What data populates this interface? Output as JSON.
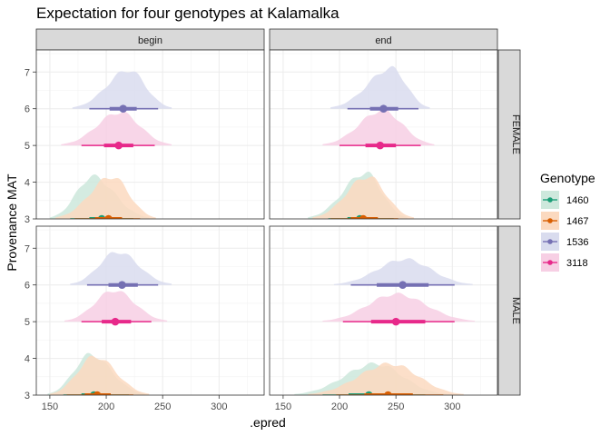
{
  "chart_data": {
    "type": "halfeye",
    "title": "Expectation for four genotypes at Kalamalka",
    "xlabel": ".epred",
    "ylabel": "Provenance MAT",
    "xlim": [
      138,
      340
    ],
    "ylim": [
      3,
      7.6
    ],
    "x_ticks": [
      150,
      200,
      250,
      300
    ],
    "y_ticks": [
      3,
      4,
      5,
      6,
      7
    ],
    "grid": true,
    "columns": [
      "begin",
      "end"
    ],
    "rows": [
      "FEMALE",
      "MALE"
    ],
    "legend": {
      "title": "Genotype",
      "placement": "right",
      "entries": [
        {
          "label": "1460",
          "color": "#1b9e77",
          "fill": "#cde8dc"
        },
        {
          "label": "1467",
          "color": "#d95f02",
          "fill": "#fbd9bf"
        },
        {
          "label": "1536",
          "color": "#7570b3",
          "fill": "#d9dcee"
        },
        {
          "label": "3118",
          "color": "#e7298a",
          "fill": "#f7cfe4"
        }
      ]
    },
    "panels": [
      {
        "row": "FEMALE",
        "col": "begin",
        "series": [
          {
            "genotype": "1460",
            "y": 3.0,
            "point": 196,
            "q66": [
              185,
              205
            ],
            "q95": [
              168,
              224
            ],
            "range": [
              150,
              238
            ],
            "mode": 188,
            "height": 1.15
          },
          {
            "genotype": "1467",
            "y": 3.0,
            "point": 202,
            "q66": [
              190,
              214
            ],
            "q95": [
              172,
              230
            ],
            "range": [
              155,
              244
            ],
            "mode": 205,
            "height": 1.15
          },
          {
            "genotype": "3118",
            "y": 5.0,
            "point": 211,
            "q66": [
              198,
              224
            ],
            "q95": [
              178,
              243
            ],
            "range": [
              160,
              258
            ],
            "mode": 212,
            "height": 0.9
          },
          {
            "genotype": "1536",
            "y": 6.0,
            "point": 215,
            "q66": [
              203,
              227
            ],
            "q95": [
              185,
              246
            ],
            "range": [
              170,
              258
            ],
            "mode": 220,
            "height": 1.05
          }
        ]
      },
      {
        "row": "FEMALE",
        "col": "end",
        "series": [
          {
            "genotype": "1460",
            "y": 3.0,
            "point": 218,
            "q66": [
              207,
              229
            ],
            "q95": [
              190,
              248
            ],
            "range": [
              172,
              260
            ],
            "mode": 223,
            "height": 1.25
          },
          {
            "genotype": "1467",
            "y": 3.0,
            "point": 221,
            "q66": [
              210,
              234
            ],
            "q95": [
              192,
              252
            ],
            "range": [
              176,
              266
            ],
            "mode": 225,
            "height": 1.15
          },
          {
            "genotype": "3118",
            "y": 5.0,
            "point": 236,
            "q66": [
              223,
              250
            ],
            "q95": [
              200,
              272
            ],
            "range": [
              185,
              284
            ],
            "mode": 238,
            "height": 0.95
          },
          {
            "genotype": "1536",
            "y": 6.0,
            "point": 239,
            "q66": [
              227,
              252
            ],
            "q95": [
              207,
              270
            ],
            "range": [
              192,
              280
            ],
            "mode": 246,
            "height": 1.1
          }
        ]
      },
      {
        "row": "MALE",
        "col": "begin",
        "series": [
          {
            "genotype": "1460",
            "y": 3.0,
            "point": 189,
            "q66": [
              178,
              199
            ],
            "q95": [
              162,
              220
            ],
            "range": [
              148,
              234
            ],
            "mode": 186,
            "height": 1.1
          },
          {
            "genotype": "1467",
            "y": 3.0,
            "point": 192,
            "q66": [
              181,
              204
            ],
            "q95": [
              165,
              224
            ],
            "range": [
              150,
              238
            ],
            "mode": 190,
            "height": 1.05
          },
          {
            "genotype": "3118",
            "y": 5.0,
            "point": 208,
            "q66": [
              196,
              222
            ],
            "q95": [
              178,
              240
            ],
            "range": [
              163,
              254
            ],
            "mode": 207,
            "height": 0.85
          },
          {
            "genotype": "1536",
            "y": 6.0,
            "point": 214,
            "q66": [
              202,
              228
            ],
            "q95": [
              183,
              246
            ],
            "range": [
              168,
              258
            ],
            "mode": 210,
            "height": 0.9
          }
        ]
      },
      {
        "row": "MALE",
        "col": "end",
        "series": [
          {
            "genotype": "1460",
            "y": 3.0,
            "point": 226,
            "q66": [
              208,
              248
            ],
            "q95": [
              185,
              276
            ],
            "range": [
              160,
              295
            ],
            "mode": 232,
            "height": 0.85
          },
          {
            "genotype": "1467",
            "y": 3.0,
            "point": 243,
            "q66": [
              222,
              265
            ],
            "q95": [
              197,
              292
            ],
            "range": [
              172,
              310
            ],
            "mode": 245,
            "height": 0.85
          },
          {
            "genotype": "3118",
            "y": 5.0,
            "point": 250,
            "q66": [
              228,
              276
            ],
            "q95": [
              203,
              302
            ],
            "range": [
              185,
              320
            ],
            "mode": 250,
            "height": 0.75
          },
          {
            "genotype": "1536",
            "y": 6.0,
            "point": 256,
            "q66": [
              233,
              279
            ],
            "q95": [
              210,
              302
            ],
            "range": [
              195,
              318
            ],
            "mode": 258,
            "height": 0.7
          }
        ]
      }
    ]
  }
}
